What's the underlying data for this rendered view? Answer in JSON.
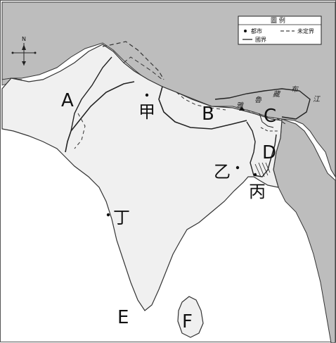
{
  "legend": {
    "title": "圖  例",
    "city": "都市",
    "undefined_border": "未定界",
    "border": "國界"
  },
  "compass": {
    "north": "N"
  },
  "regions": {
    "A": "A",
    "B": "B",
    "C": "C",
    "D": "D",
    "E": "E",
    "F": "F"
  },
  "cities": {
    "jia": "甲",
    "yi": "乙",
    "bing": "丙",
    "ding": "丁"
  },
  "river_label": [
    "雅",
    "魯",
    "藏",
    "布",
    "江"
  ]
}
